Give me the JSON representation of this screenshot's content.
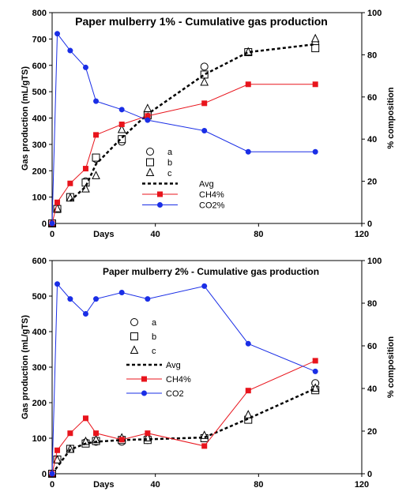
{
  "chart_data": [
    {
      "type": "line",
      "title": "Paper mulberry 1% - Cumulative gas production",
      "xlabel": "Days",
      "ylabel": "Gas production (mL/gTS)",
      "y2label": "% composition",
      "xlim": [
        0,
        120
      ],
      "ylim": [
        0,
        800
      ],
      "y2lim": [
        0,
        100
      ],
      "xticks": [
        "0",
        "40",
        "80",
        "120"
      ],
      "yticks": [
        "0",
        "100",
        "200",
        "300",
        "400",
        "500",
        "600",
        "700",
        "800"
      ],
      "y2ticks": [
        "0",
        "20",
        "40",
        "60",
        "80",
        "100"
      ],
      "legend_position": "center-right",
      "series": [
        {
          "name": "a",
          "axis": "left",
          "marker": "circle",
          "color": "#000000",
          "line": "none",
          "x": [
            0,
            2,
            7,
            13,
            17,
            27,
            37,
            59,
            76,
            102
          ],
          "y": [
            0,
            55,
            100,
            160,
            245,
            310,
            405,
            595,
            650,
            680
          ]
        },
        {
          "name": "b",
          "axis": "left",
          "marker": "square",
          "color": "#000000",
          "line": "none",
          "x": [
            0,
            2,
            7,
            13,
            17,
            27,
            37,
            59,
            76,
            102
          ],
          "y": [
            0,
            55,
            100,
            155,
            250,
            320,
            410,
            565,
            650,
            665
          ]
        },
        {
          "name": "c",
          "axis": "left",
          "marker": "triangle",
          "color": "#000000",
          "line": "none",
          "x": [
            0,
            2,
            7,
            13,
            17,
            27,
            37,
            59,
            76,
            102
          ],
          "y": [
            0,
            55,
            95,
            130,
            180,
            355,
            435,
            535,
            650,
            700
          ]
        },
        {
          "name": "Avg",
          "axis": "left",
          "marker": "none",
          "color": "#000000",
          "line": "dotted",
          "x": [
            7,
            13,
            17,
            27,
            37,
            59,
            76,
            102
          ],
          "y": [
            85,
            140,
            225,
            325,
            415,
            565,
            650,
            680
          ]
        },
        {
          "name": "CH4%",
          "axis": "right",
          "marker": "square-filled",
          "color": "#e8141c",
          "line": "solid",
          "x": [
            0,
            2,
            7,
            13,
            17,
            27,
            37,
            59,
            76,
            102
          ],
          "y": [
            0,
            10,
            19,
            26,
            42,
            47,
            51,
            57,
            66,
            66
          ]
        },
        {
          "name": "CO2%",
          "axis": "right",
          "marker": "circle-filled",
          "color": "#1a2ee6",
          "line": "solid",
          "x": [
            0,
            2,
            7,
            13,
            17,
            27,
            37,
            59,
            76,
            102
          ],
          "y": [
            0,
            90,
            82,
            74,
            58,
            54,
            49,
            44,
            34,
            34
          ]
        }
      ]
    },
    {
      "type": "line",
      "title": "Paper mulberry 2%  - Cumulative gas production",
      "xlabel": "Days",
      "ylabel": "Gas production (mL/gTS)",
      "y2label": "% composition",
      "xlim": [
        0,
        120
      ],
      "ylim": [
        0,
        600
      ],
      "y2lim": [
        0,
        100
      ],
      "xticks": [
        "0",
        "40",
        "80",
        "120"
      ],
      "yticks": [
        "0",
        "100",
        "200",
        "300",
        "400",
        "500",
        "600"
      ],
      "y2ticks": [
        "0",
        "20",
        "40",
        "60",
        "80",
        "100"
      ],
      "legend_position": "center",
      "series": [
        {
          "name": "a",
          "axis": "left",
          "marker": "circle",
          "color": "#000000",
          "line": "none",
          "x": [
            0,
            2,
            7,
            13,
            17,
            27,
            37,
            59,
            76,
            102
          ],
          "y": [
            0,
            40,
            70,
            88,
            90,
            90,
            95,
            100,
            155,
            255
          ]
        },
        {
          "name": "b",
          "axis": "left",
          "marker": "square",
          "color": "#000000",
          "line": "none",
          "x": [
            0,
            2,
            7,
            13,
            17,
            27,
            37,
            59,
            76,
            102
          ],
          "y": [
            0,
            40,
            70,
            85,
            92,
            95,
            95,
            100,
            152,
            235
          ]
        },
        {
          "name": "c",
          "axis": "left",
          "marker": "triangle",
          "color": "#000000",
          "line": "none",
          "x": [
            0,
            2,
            7,
            13,
            17,
            27,
            37,
            59,
            76,
            102
          ],
          "y": [
            0,
            38,
            68,
            90,
            95,
            100,
            100,
            107,
            165,
            240
          ]
        },
        {
          "name": "Avg",
          "axis": "left",
          "marker": "none",
          "color": "#000000",
          "line": "dotted",
          "x": [
            0,
            7,
            13,
            17,
            27,
            37,
            59,
            76,
            102
          ],
          "y": [
            0,
            68,
            85,
            90,
            95,
            97,
            102,
            155,
            240
          ]
        },
        {
          "name": "CH4%",
          "axis": "right",
          "marker": "square-filled",
          "color": "#e8141c",
          "line": "solid",
          "x": [
            0,
            2,
            7,
            13,
            17,
            27,
            37,
            59,
            76,
            102
          ],
          "y": [
            0,
            11,
            19,
            26,
            19,
            16,
            19,
            13,
            39,
            53
          ]
        },
        {
          "name": "CO2",
          "axis": "right",
          "marker": "circle-filled",
          "color": "#1a2ee6",
          "line": "solid",
          "x": [
            0,
            2,
            7,
            13,
            17,
            27,
            37,
            59,
            76,
            102
          ],
          "y": [
            0,
            89,
            82,
            75,
            82,
            85,
            82,
            88,
            61,
            48
          ]
        }
      ]
    }
  ]
}
